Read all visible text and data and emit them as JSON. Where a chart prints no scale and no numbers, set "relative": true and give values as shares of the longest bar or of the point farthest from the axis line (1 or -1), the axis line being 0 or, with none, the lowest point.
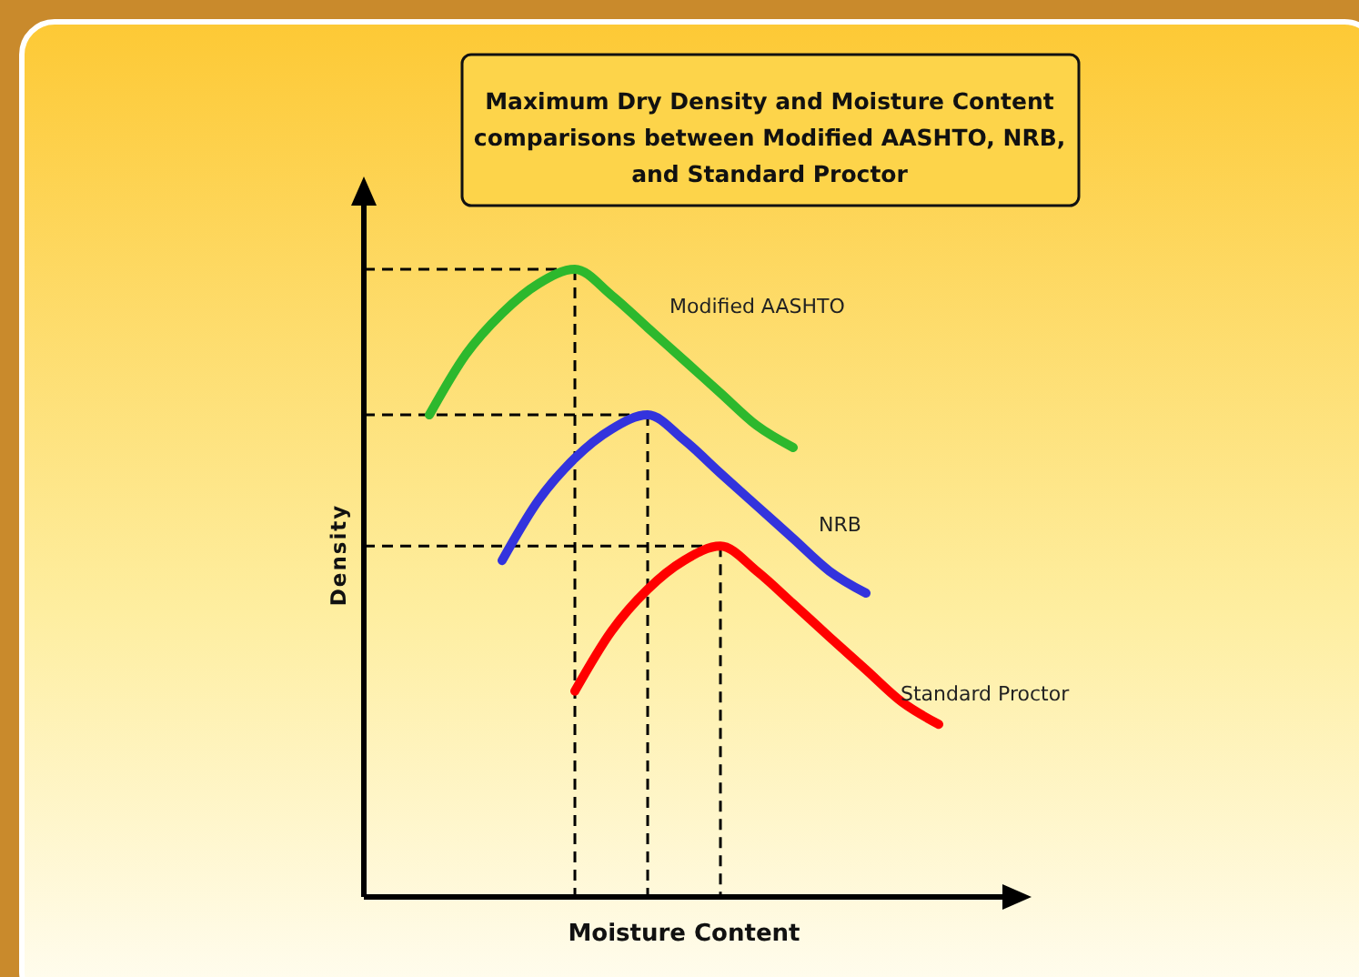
{
  "chart_data": {
    "type": "line",
    "relative": true,
    "title": "Maximum Dry Density and Moisture Content comparisons between Modified AASHTO, NRB, and Standard Proctor",
    "xlabel": "Moisture Content",
    "ylabel": "Density",
    "legend": false,
    "line_style": "solid",
    "marker": "none",
    "categories": [
      null,
      null,
      null,
      null,
      null,
      null,
      null,
      null,
      null,
      null,
      null,
      null,
      null,
      null,
      null
    ],
    "series": [
      {
        "name": "Modified AASHTO",
        "color": "#2db82d",
        "values": [
          0.768,
          0.864,
          0.93,
          0.977,
          1,
          0.959,
          0.907,
          0.855,
          0.803,
          0.751,
          0.716,
          null,
          null,
          null,
          null
        ]
      },
      {
        "name": "NRB",
        "color": "#3333dd",
        "values": [
          null,
          null,
          0.536,
          0.632,
          0.699,
          0.745,
          0.768,
          0.728,
          0.675,
          0.623,
          0.571,
          0.519,
          0.484,
          null,
          null
        ]
      },
      {
        "name": "Standard Proctor",
        "color": "#ff0000",
        "values": [
          null,
          null,
          null,
          null,
          0.328,
          0.423,
          0.49,
          0.536,
          0.559,
          0.519,
          0.467,
          0.414,
          0.362,
          0.31,
          0.275
        ]
      }
    ],
    "ref_lines": [
      {
        "axis": "y",
        "value": 1,
        "line_style": "dashed",
        "color": "#000000"
      },
      {
        "axis": "y",
        "value": 0.768,
        "line_style": "dashed",
        "color": "#000000"
      },
      {
        "axis": "y",
        "value": 0.559,
        "line_style": "dashed",
        "color": "#000000"
      }
    ]
  }
}
